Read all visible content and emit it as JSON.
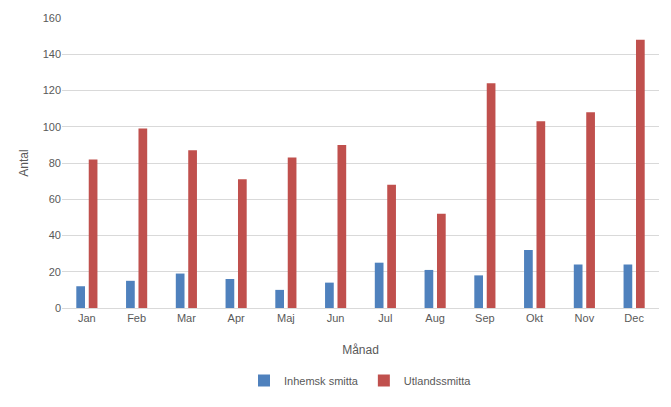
{
  "chart_data": {
    "type": "bar",
    "x_label": "Månad",
    "y_label": "Antal",
    "categories": [
      "Jan",
      "Feb",
      "Mar",
      "Apr",
      "Maj",
      "Jun",
      "Jul",
      "Aug",
      "Sep",
      "Okt",
      "Nov",
      "Dec"
    ],
    "series": [
      {
        "name": "Inhemsk smitta",
        "color": "#4f81bd",
        "values": [
          12,
          15,
          19,
          16,
          10,
          14,
          25,
          21,
          18,
          32,
          24,
          24
        ]
      },
      {
        "name": "Utlandssmitta",
        "color": "#c0504d",
        "values": [
          82,
          99,
          87,
          71,
          83,
          90,
          68,
          52,
          124,
          103,
          108,
          148
        ]
      }
    ],
    "ylim": [
      0,
      160
    ],
    "yticks": [
      0,
      20,
      40,
      60,
      80,
      100,
      120,
      140,
      160
    ],
    "grid": true,
    "legend": "bottom"
  }
}
